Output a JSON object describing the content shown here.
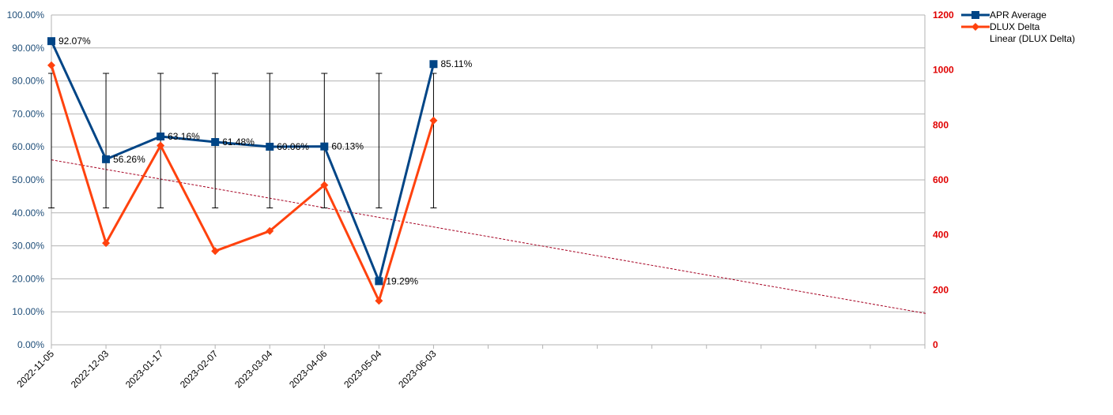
{
  "chart_data": {
    "type": "line",
    "title": "",
    "x": [
      "2022-11-05",
      "2022-12-03",
      "2023-01-17",
      "2023-02-07",
      "2023-03-04",
      "2023-04-06",
      "2023-05-04",
      "2023-06-03"
    ],
    "y_left_range": [
      0,
      100
    ],
    "y_right_range": [
      0,
      1200
    ],
    "y_left_ticks": [
      "0.00%",
      "10.00%",
      "20.00%",
      "30.00%",
      "40.00%",
      "50.00%",
      "60.00%",
      "70.00%",
      "80.00%",
      "90.00%",
      "100.00%"
    ],
    "y_right_ticks": [
      "0",
      "200",
      "400",
      "600",
      "800",
      "1000",
      "1200"
    ],
    "x_slot_count": 17,
    "grid": true,
    "legend_position": "top-right",
    "series": [
      {
        "name": "APR Average",
        "axis": "left",
        "color": "#004586",
        "marker": "square",
        "values": [
          92.07,
          56.26,
          63.16,
          61.48,
          60.06,
          60.13,
          19.29,
          85.11
        ],
        "labels": [
          "92.07%",
          "56.26%",
          "63.16%",
          "61.48%",
          "60.06%",
          "60.13%",
          "19.29%",
          "85.11%"
        ],
        "error_bars": {
          "low": 41.5,
          "high": 82.3
        }
      },
      {
        "name": "DLUX Delta",
        "axis": "right",
        "color": "#ff420e",
        "marker": "diamond",
        "values": [
          1017,
          370,
          725,
          341,
          414,
          581,
          160,
          816
        ]
      },
      {
        "name": "Linear (DLUX Delta)",
        "axis": "right",
        "color": "#a50021",
        "style": "dashed",
        "trend_start": 673,
        "slope_per_slot": -34.9
      }
    ]
  }
}
